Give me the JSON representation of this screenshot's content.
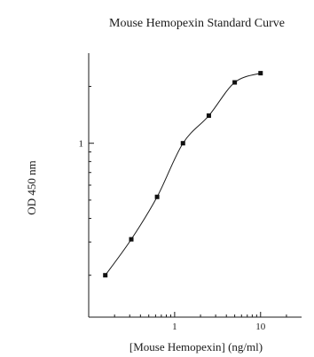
{
  "chart_data": {
    "type": "scatter",
    "title": "Mouse Hemopexin Standard Curve",
    "xlabel": "[Mouse Hemopexin] (ng/ml)",
    "ylabel": "OD 450 nm",
    "x_scale": "log",
    "y_scale": "log",
    "xlim": [
      0.1,
      30
    ],
    "ylim": [
      0.12,
      3
    ],
    "x_ticks": [
      {
        "value": 1,
        "label": "1"
      },
      {
        "value": 10,
        "label": "10"
      }
    ],
    "y_ticks": [
      {
        "value": 1,
        "label": "1"
      }
    ],
    "grid": false,
    "legend": "none",
    "series": [
      {
        "points": [
          {
            "x": 0.156,
            "y": 0.2
          },
          {
            "x": 0.313,
            "y": 0.31
          },
          {
            "x": 0.625,
            "y": 0.52
          },
          {
            "x": 1.25,
            "y": 1.0
          },
          {
            "x": 2.5,
            "y": 1.4
          },
          {
            "x": 5,
            "y": 2.1
          },
          {
            "x": 10,
            "y": 2.35
          }
        ]
      }
    ],
    "colors": {
      "ink": "#1a1a1a",
      "marker": "#111111",
      "background": "#ffffff"
    }
  }
}
